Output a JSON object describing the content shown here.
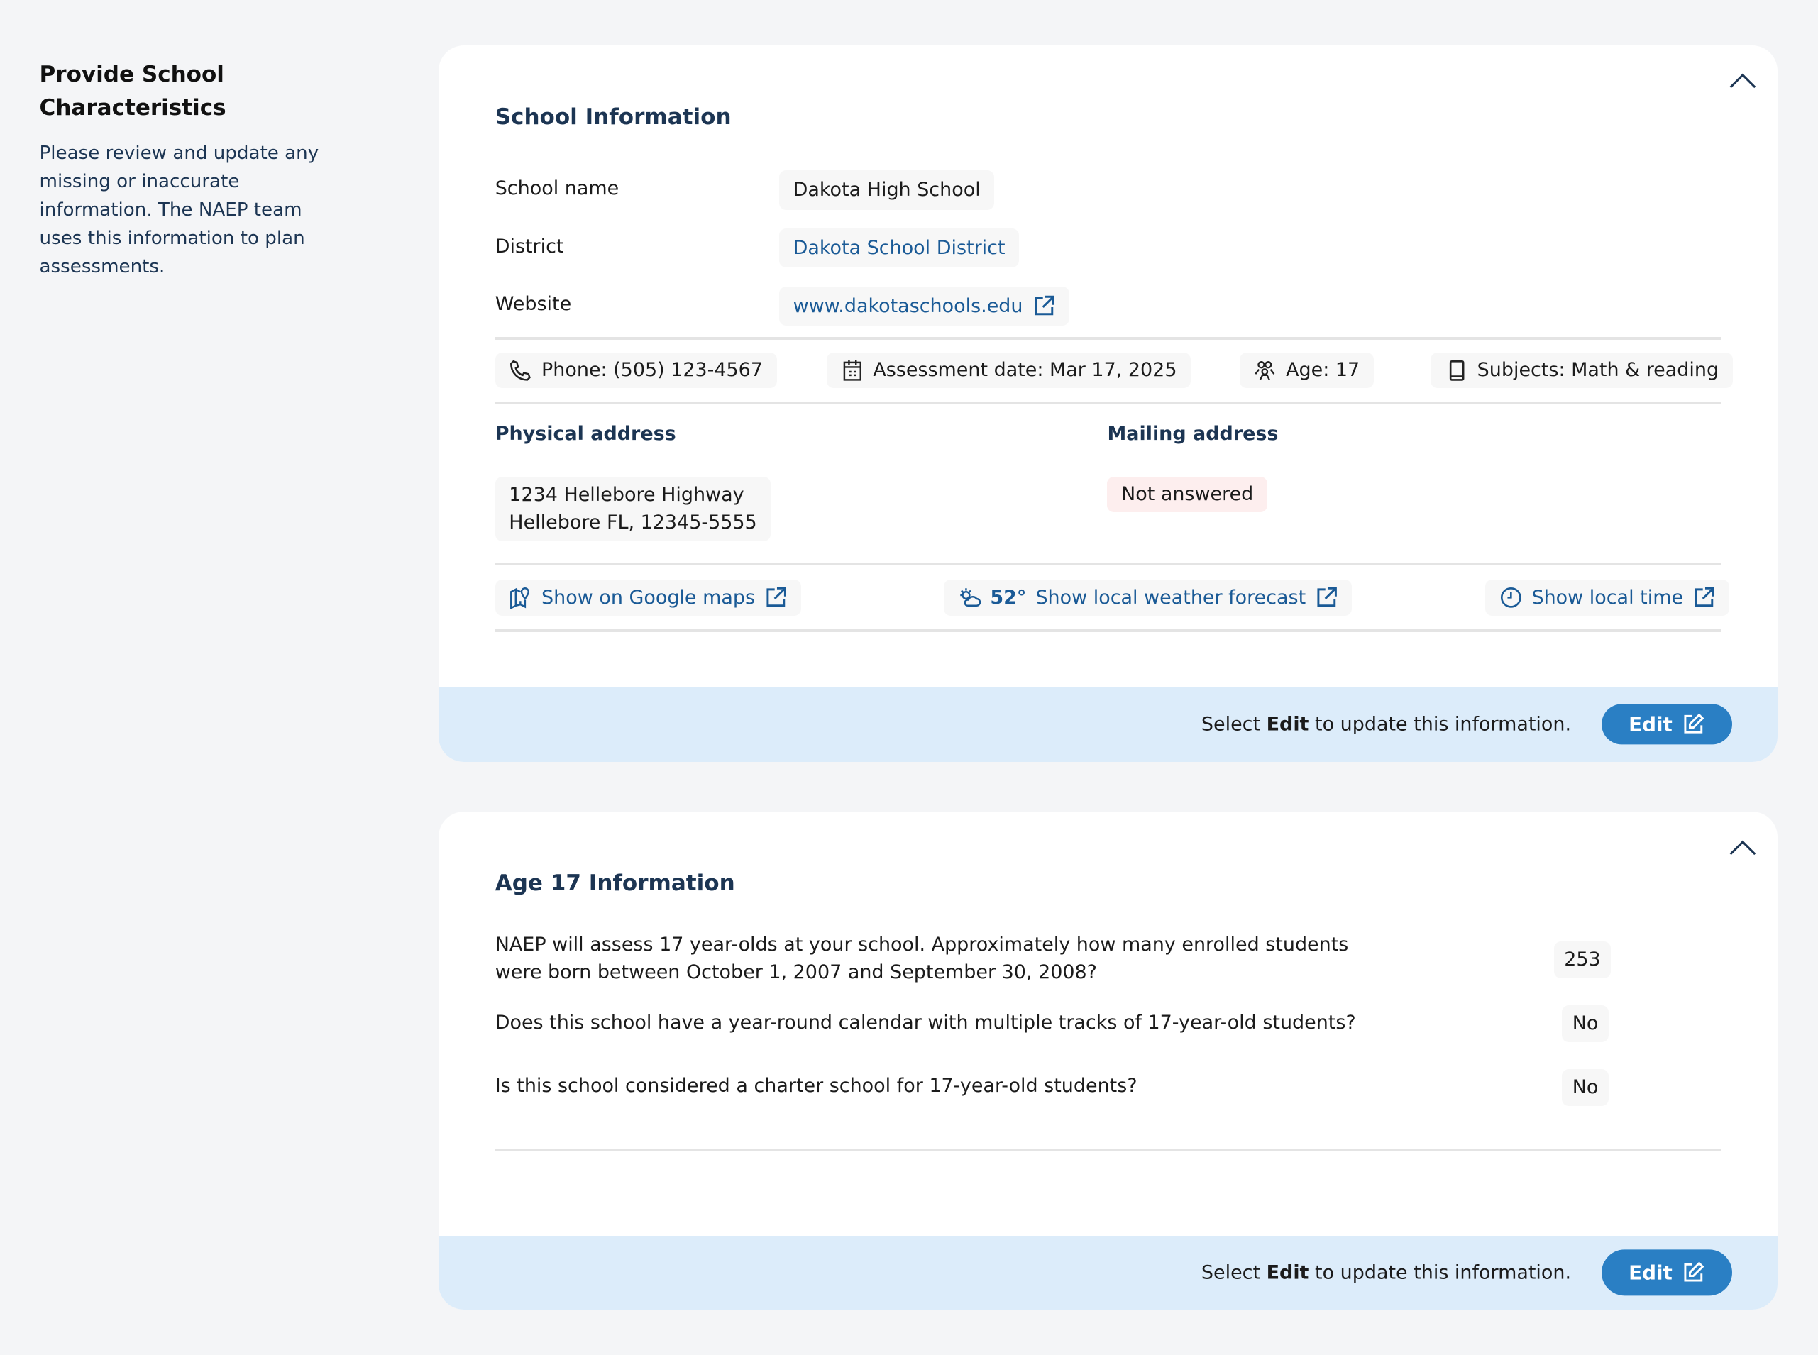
{
  "sidebar": {
    "title": "Provide School Characteristics",
    "description": "Please review and update any missing or inaccurate information. The NAEP team uses this information to plan assessments."
  },
  "school_info": {
    "title": "School Information",
    "fields": [
      {
        "label": "School name",
        "value": "Dakota High School"
      },
      {
        "label": "District",
        "value": "Dakota School District"
      },
      {
        "label": "Website",
        "value": "www.dakotaschools.edu"
      }
    ],
    "chips": [
      {
        "icon": "phone-icon",
        "text": "Phone: (505) 123-4567"
      },
      {
        "icon": "calendar-icon",
        "text": "Assessment date: Mar 17, 2025"
      },
      {
        "icon": "people-icon",
        "text": "Age: 17"
      },
      {
        "icon": "book-icon",
        "text": "Subjects: Math & reading"
      }
    ],
    "physical_address": {
      "label": "Physical address",
      "line1": "1234 Hellebore Highway",
      "line2": "Hellebore FL, 12345-5555"
    },
    "mailing_address": {
      "label": "Mailing address",
      "value": "Not answered"
    },
    "links": {
      "maps": "Show on Google maps",
      "temperature": "52°",
      "weather": "Show local weather forecast",
      "time": "Show local time"
    },
    "footer": {
      "pre": "Select ",
      "bold": "Edit",
      "post": " to update this information.",
      "button": "Edit"
    }
  },
  "age17": {
    "title": "Age 17 Information",
    "questions": [
      {
        "text": "NAEP will assess 17 year-olds at your school. Approximately how many enrolled students were born between October 1, 2007 and September 30, 2008?",
        "answer": "253"
      },
      {
        "text": "Does this school have a year-round calendar with multiple tracks of 17-year-old students?",
        "answer": "No"
      },
      {
        "text": "Is this school considered a charter school for 17-year-old students?",
        "answer": "No"
      }
    ],
    "footer": {
      "pre": "Select ",
      "bold": "Edit",
      "post": " to update this information.",
      "button": "Edit"
    }
  },
  "colors": {
    "heading": "#1c3553",
    "link": "#1a5a96",
    "button": "#2a7fc4",
    "band": "#dcecfa",
    "not_answered": "#fdeeee"
  }
}
